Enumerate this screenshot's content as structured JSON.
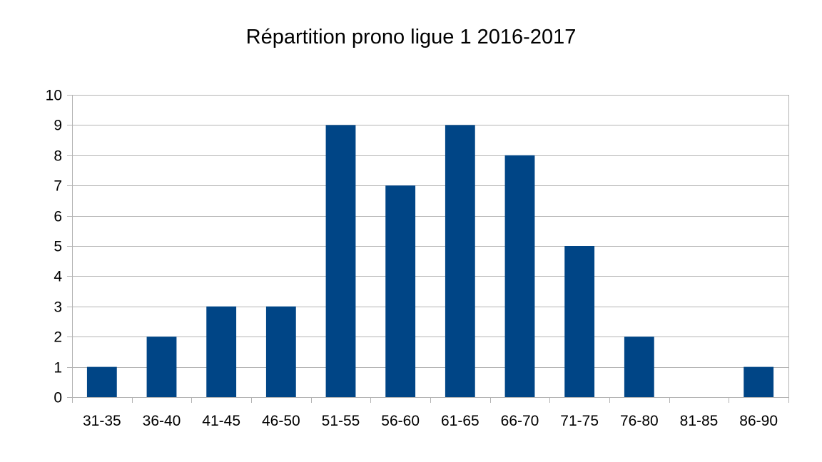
{
  "chart_data": {
    "type": "bar",
    "title": "Répartition prono ligue 1 2016-2017",
    "xlabel": "",
    "ylabel": "",
    "categories": [
      "31-35",
      "36-40",
      "41-45",
      "46-50",
      "51-55",
      "56-60",
      "61-65",
      "66-70",
      "71-75",
      "76-80",
      "81-85",
      "86-90"
    ],
    "values": [
      1,
      2,
      3,
      3,
      9,
      7,
      9,
      8,
      5,
      2,
      0,
      1
    ],
    "ylim": [
      0,
      10
    ],
    "yticks": [
      "0",
      "1",
      "2",
      "3",
      "4",
      "5",
      "6",
      "7",
      "8",
      "9",
      "10"
    ],
    "grid": "horizontal",
    "legend": "none",
    "bar_color": "#004586",
    "grid_color": "#b3b3b3"
  }
}
